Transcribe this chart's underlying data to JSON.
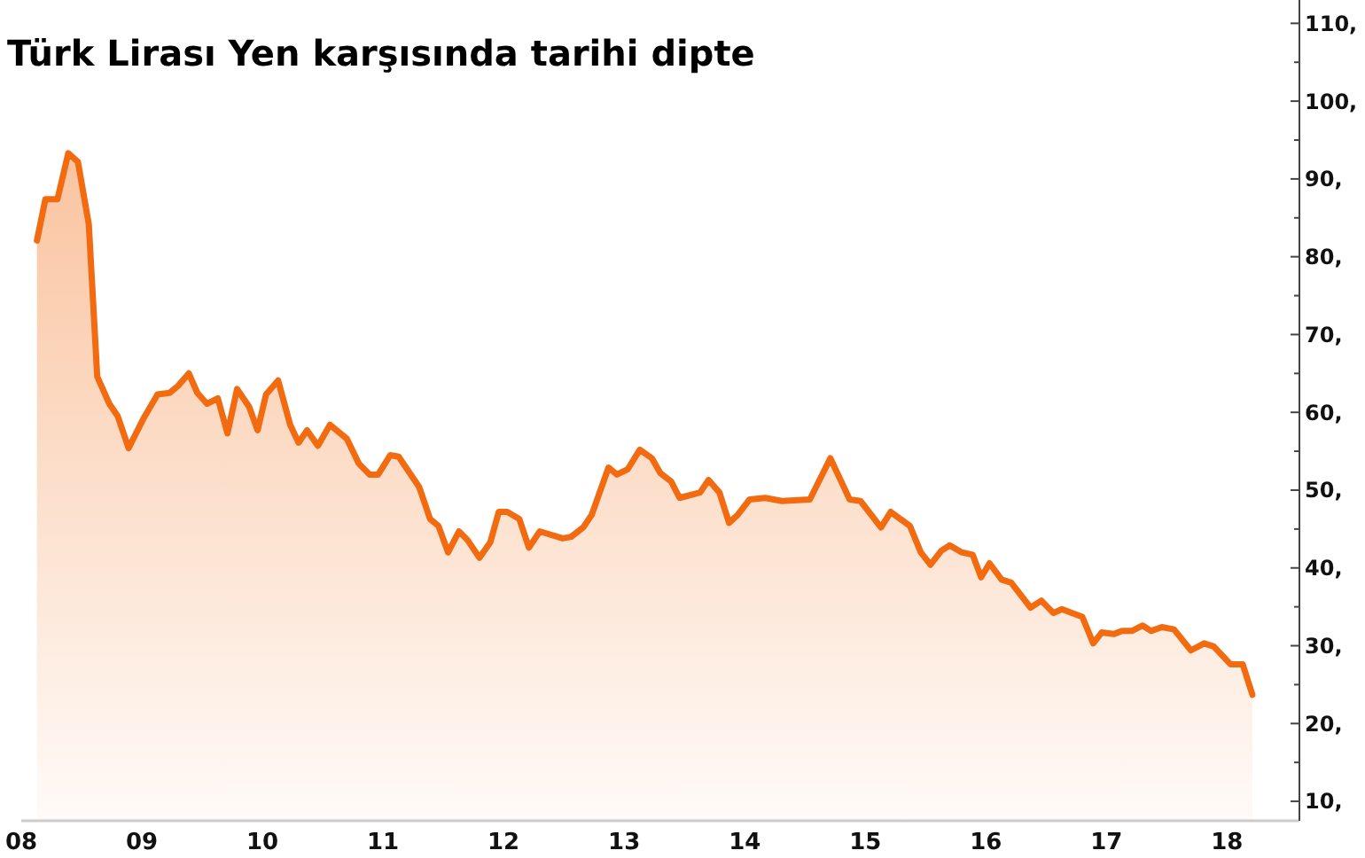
{
  "chart_data": {
    "type": "area",
    "title": "Türk Lirası Yen karşısında tarihi dipte",
    "x": [
      2008.13,
      2008.2,
      2008.3,
      2008.39,
      2008.47,
      2008.56,
      2008.63,
      2008.73,
      2008.8,
      2008.89,
      2009.01,
      2009.13,
      2009.23,
      2009.3,
      2009.39,
      2009.46,
      2009.54,
      2009.63,
      2009.71,
      2009.79,
      2009.89,
      2009.96,
      2010.03,
      2010.13,
      2010.23,
      2010.3,
      2010.37,
      2010.46,
      2010.56,
      2010.7,
      2010.8,
      2010.89,
      2010.96,
      2011.06,
      2011.13,
      2011.3,
      2011.39,
      2011.46,
      2011.54,
      2011.63,
      2011.7,
      2011.8,
      2011.89,
      2011.96,
      2012.03,
      2012.13,
      2012.21,
      2012.3,
      2012.49,
      2012.56,
      2012.66,
      2012.73,
      2012.87,
      2012.94,
      2013.03,
      2013.13,
      2013.23,
      2013.3,
      2013.39,
      2013.46,
      2013.63,
      2013.7,
      2013.79,
      2013.87,
      2013.94,
      2014.04,
      2014.17,
      2014.31,
      2014.54,
      2014.71,
      2014.87,
      2014.96,
      2015.13,
      2015.21,
      2015.37,
      2015.46,
      2015.54,
      2015.63,
      2015.7,
      2015.8,
      2015.89,
      2015.96,
      2016.03,
      2016.13,
      2016.21,
      2016.37,
      2016.46,
      2016.56,
      2016.63,
      2016.8,
      2016.89,
      2016.96,
      2017.06,
      2017.13,
      2017.21,
      2017.3,
      2017.37,
      2017.46,
      2017.56,
      2017.7,
      2017.81,
      2017.89,
      2018.03,
      2018.13,
      2018.21
    ],
    "series": [
      {
        "color": "#f26b10",
        "values": [
          82.1,
          87.4,
          87.4,
          93.3,
          92.2,
          84.2,
          64.6,
          61.1,
          59.5,
          55.4,
          59.1,
          62.3,
          62.5,
          63.4,
          65.0,
          62.5,
          61.1,
          61.8,
          57.3,
          63.0,
          60.7,
          57.7,
          62.3,
          64.1,
          58.4,
          56.1,
          57.7,
          55.7,
          58.4,
          56.6,
          53.4,
          52.0,
          52.0,
          54.5,
          54.3,
          50.4,
          46.3,
          45.4,
          42.0,
          44.7,
          43.6,
          41.3,
          43.3,
          47.2,
          47.2,
          46.3,
          42.6,
          44.7,
          43.8,
          44.0,
          45.2,
          46.8,
          52.9,
          52.0,
          52.7,
          55.2,
          54.1,
          52.2,
          51.1,
          49.0,
          49.7,
          51.3,
          49.7,
          45.8,
          46.8,
          48.8,
          49.0,
          48.6,
          48.8,
          54.1,
          48.8,
          48.6,
          45.2,
          47.2,
          45.4,
          42.0,
          40.4,
          42.2,
          42.9,
          42.0,
          41.7,
          38.8,
          40.6,
          38.5,
          38.1,
          34.9,
          35.8,
          34.2,
          34.7,
          33.7,
          30.3,
          31.7,
          31.5,
          31.9,
          31.9,
          32.6,
          31.9,
          32.4,
          32.1,
          29.4,
          30.3,
          29.9,
          27.6,
          27.6,
          23.7
        ]
      }
    ],
    "xlim": [
      2008,
      2018.6
    ],
    "xticks": [
      {
        "value": 2008,
        "label": "08"
      },
      {
        "value": 2009,
        "label": "09"
      },
      {
        "value": 2010,
        "label": "10"
      },
      {
        "value": 2011,
        "label": "11"
      },
      {
        "value": 2012,
        "label": "12"
      },
      {
        "value": 2013,
        "label": "13"
      },
      {
        "value": 2014,
        "label": "14"
      },
      {
        "value": 2015,
        "label": "15"
      },
      {
        "value": 2016,
        "label": "16"
      },
      {
        "value": 2017,
        "label": "17"
      },
      {
        "value": 2018,
        "label": "18"
      }
    ],
    "ylim": [
      7.5,
      113
    ],
    "yticks": [
      {
        "value": 10,
        "label": "10,"
      },
      {
        "value": 15,
        "label": null
      },
      {
        "value": 20,
        "label": "20,"
      },
      {
        "value": 25,
        "label": null
      },
      {
        "value": 30,
        "label": "30,"
      },
      {
        "value": 35,
        "label": null
      },
      {
        "value": 40,
        "label": "40,"
      },
      {
        "value": 45,
        "label": null
      },
      {
        "value": 50,
        "label": "50,"
      },
      {
        "value": 55,
        "label": null
      },
      {
        "value": 60,
        "label": "60,"
      },
      {
        "value": 65,
        "label": null
      },
      {
        "value": 70,
        "label": "70,"
      },
      {
        "value": 75,
        "label": null
      },
      {
        "value": 80,
        "label": "80,"
      },
      {
        "value": 85,
        "label": null
      },
      {
        "value": 90,
        "label": "90,"
      },
      {
        "value": 95,
        "label": null
      },
      {
        "value": 100,
        "label": "100,"
      },
      {
        "value": 105,
        "label": null
      },
      {
        "value": 110,
        "label": "110,"
      }
    ]
  }
}
